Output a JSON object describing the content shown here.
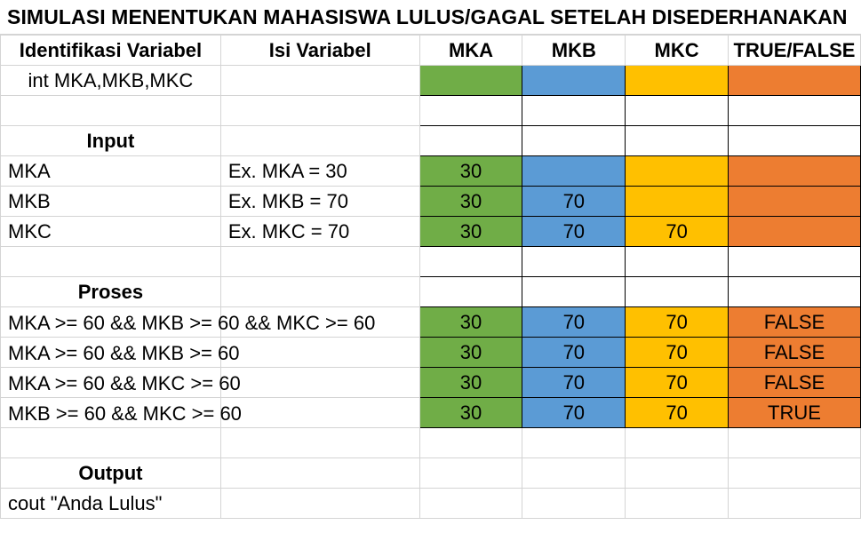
{
  "title": "SIMULASI MENENTUKAN MAHASISWA LULUS/GAGAL SETELAH DISEDERHANAKAN",
  "headers": {
    "identifikasi": "Identifikasi Variabel",
    "isi": "Isi Variabel",
    "mka": "MKA",
    "mkb": "MKB",
    "mkc": "MKC",
    "truefalse": "TRUE/FALSE"
  },
  "declaration": "int MKA,MKB,MKC",
  "input": {
    "label": "Input",
    "rows": [
      {
        "name": "MKA",
        "example": "Ex. MKA = 30",
        "mka": "30",
        "mkb": "",
        "mkc": "",
        "tf": ""
      },
      {
        "name": "MKB",
        "example": "Ex. MKB = 70",
        "mka": "30",
        "mkb": "70",
        "mkc": "",
        "tf": ""
      },
      {
        "name": "MKC",
        "example": "Ex. MKC = 70",
        "mka": "30",
        "mkb": "70",
        "mkc": "70",
        "tf": ""
      }
    ]
  },
  "proses": {
    "label": "Proses",
    "rows": [
      {
        "condition": "MKA >= 60 && MKB >= 60 && MKC >= 60",
        "mka": "30",
        "mkb": "70",
        "mkc": "70",
        "tf": "FALSE"
      },
      {
        "condition": "MKA >= 60 && MKB >= 60",
        "mka": "30",
        "mkb": "70",
        "mkc": "70",
        "tf": "FALSE"
      },
      {
        "condition": "MKA >= 60 && MKC >= 60",
        "mka": "30",
        "mkb": "70",
        "mkc": "70",
        "tf": "FALSE"
      },
      {
        "condition": "MKB >= 60 && MKC >= 60",
        "mka": "30",
        "mkb": "70",
        "mkc": "70",
        "tf": "TRUE"
      }
    ]
  },
  "output": {
    "label": "Output",
    "statement": "cout \"Anda Lulus\""
  },
  "colors": {
    "mka": "#70ad47",
    "mkb": "#5b9bd5",
    "mkc": "#ffc000",
    "truefalse": "#ed7d31"
  }
}
